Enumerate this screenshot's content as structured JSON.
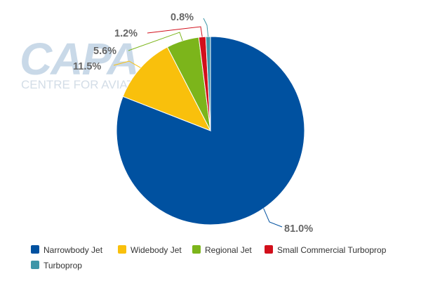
{
  "watermark": {
    "logo_text": "CAPA",
    "tagline": "CENTRE FOR AVIATION"
  },
  "chart_data": {
    "type": "pie",
    "title": "",
    "categories": [
      "Narrowbody Jet",
      "Widebody Jet",
      "Regional Jet",
      "Small Commercial Turboprop",
      "Turboprop"
    ],
    "values": [
      81.0,
      11.5,
      5.6,
      1.2,
      0.8
    ],
    "labels": [
      "81.0%",
      "11.5%",
      "5.6%",
      "1.2%",
      "0.8%"
    ],
    "colors": [
      "#0051a0",
      "#f9c00c",
      "#7cb51b",
      "#d20f1b",
      "#3e96a8"
    ],
    "start_angle_deg": 0,
    "direction": "clockwise",
    "legend_position": "bottom-left"
  }
}
